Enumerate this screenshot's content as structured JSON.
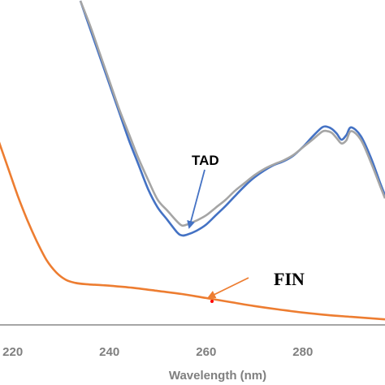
{
  "chart_data": {
    "type": "line",
    "xlabel": "Wavelength (nm)",
    "ylabel": "",
    "xlim": [
      213,
      297
    ],
    "ylim": [
      0,
      1
    ],
    "x_ticks": [
      220,
      240,
      260,
      280
    ],
    "x_tick_labels": [
      "220",
      "240",
      "260",
      "280"
    ],
    "grid": false,
    "series": [
      {
        "name": "",
        "color": "#4472c4",
        "x": [
          234,
          236,
          238,
          240,
          242,
          244,
          246,
          248,
          250,
          252,
          254,
          255,
          256,
          258,
          260,
          262,
          264,
          266,
          268,
          270,
          272,
          274,
          276,
          278,
          280,
          282,
          284,
          285,
          286,
          287,
          288,
          289,
          290,
          292,
          294,
          296,
          297
        ],
        "y": [
          1.05,
          0.96,
          0.87,
          0.78,
          0.69,
          0.6,
          0.52,
          0.44,
          0.38,
          0.34,
          0.3,
          0.29,
          0.292,
          0.305,
          0.325,
          0.355,
          0.385,
          0.418,
          0.45,
          0.478,
          0.5,
          0.518,
          0.53,
          0.548,
          0.576,
          0.61,
          0.64,
          0.642,
          0.635,
          0.62,
          0.6,
          0.615,
          0.64,
          0.612,
          0.545,
          0.46,
          0.42
        ]
      },
      {
        "name": "",
        "color": "#a5a5a5",
        "x": [
          234,
          236,
          238,
          240,
          242,
          244,
          246,
          248,
          250,
          252,
          254,
          255,
          256,
          258,
          260,
          262,
          264,
          266,
          268,
          270,
          272,
          274,
          276,
          278,
          280,
          282,
          284,
          285,
          286,
          287,
          288,
          289,
          290,
          292,
          294,
          296,
          297
        ],
        "y": [
          1.05,
          0.97,
          0.88,
          0.79,
          0.7,
          0.62,
          0.54,
          0.47,
          0.405,
          0.37,
          0.335,
          0.322,
          0.325,
          0.338,
          0.355,
          0.38,
          0.405,
          0.435,
          0.46,
          0.485,
          0.505,
          0.52,
          0.533,
          0.55,
          0.575,
          0.6,
          0.626,
          0.628,
          0.622,
          0.605,
          0.588,
          0.598,
          0.628,
          0.6,
          0.53,
          0.45,
          0.41
        ]
      },
      {
        "name": "",
        "color": "#ed7d31",
        "x": [
          213,
          215,
          217,
          219,
          221,
          223,
          225,
          227,
          229,
          231,
          233,
          235,
          237,
          240,
          245,
          250,
          255,
          260,
          265,
          270,
          275,
          280,
          285,
          290,
          297
        ],
        "y": [
          0.75,
          0.69,
          0.6,
          0.51,
          0.42,
          0.34,
          0.27,
          0.21,
          0.17,
          0.146,
          0.136,
          0.132,
          0.13,
          0.127,
          0.12,
          0.11,
          0.1,
          0.087,
          0.074,
          0.061,
          0.05,
          0.04,
          0.032,
          0.026,
          0.018
        ]
      }
    ],
    "annotations": [
      {
        "text": "TAD",
        "color": "#4472c4",
        "target_x": 255,
        "target_y": 0.29
      },
      {
        "text": "FIN",
        "color": "#ed7d31",
        "target_x": 259,
        "target_y": 0.09
      }
    ]
  }
}
